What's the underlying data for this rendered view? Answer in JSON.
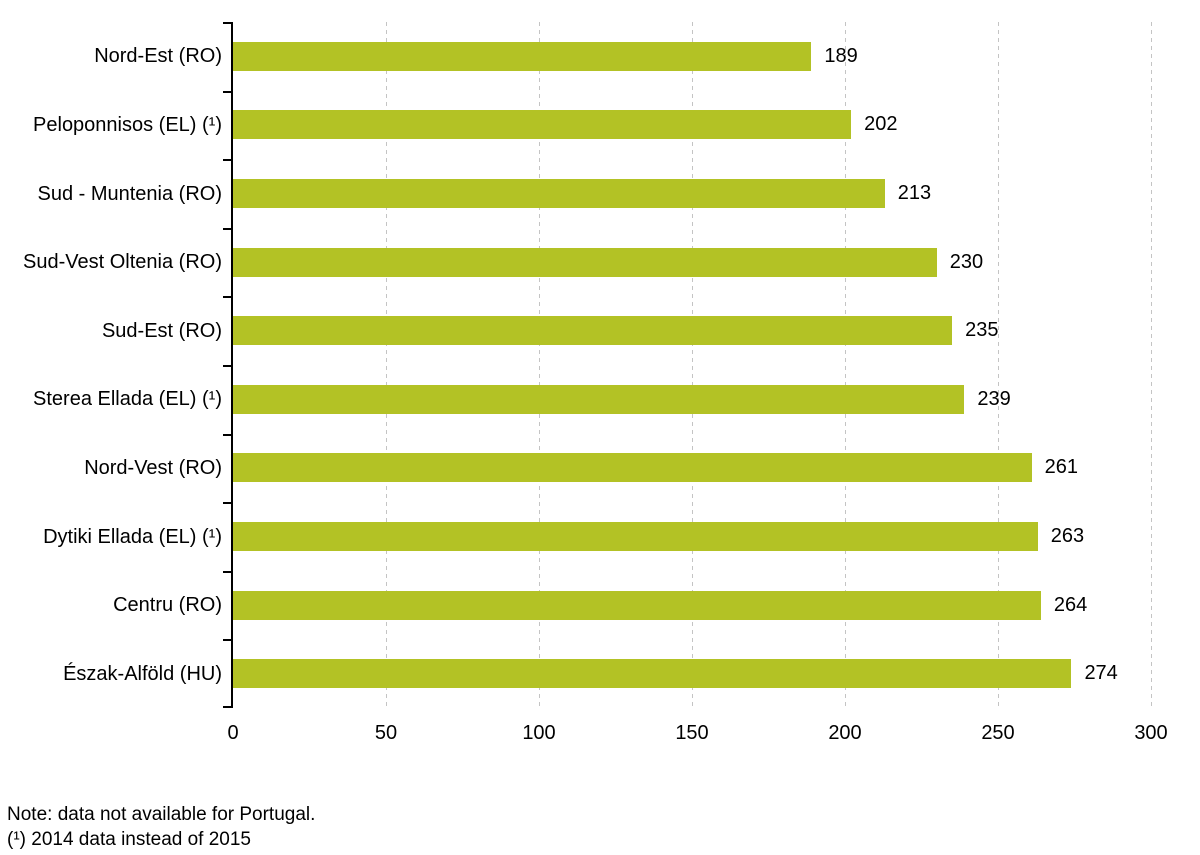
{
  "chart_data": {
    "type": "bar",
    "orientation": "horizontal",
    "title": "",
    "xlabel": "",
    "ylabel": "",
    "categories": [
      "Nord-Est (RO)",
      "Peloponnisos (EL) (¹)",
      "Sud - Muntenia (RO)",
      "Sud-Vest Oltenia (RO)",
      "Sud-Est (RO)",
      "Sterea Ellada (EL) (¹)",
      "Nord-Vest (RO)",
      "Dytiki Ellada (EL) (¹)",
      "Centru (RO)",
      "Észak-Alföld (HU)"
    ],
    "values": [
      189,
      202,
      213,
      230,
      235,
      239,
      261,
      263,
      264,
      274
    ],
    "value_labels_shown": true,
    "xlim": [
      0,
      300
    ],
    "xticks": [
      0,
      50,
      100,
      150,
      200,
      250,
      300
    ],
    "grid": "vertical-dashed-gridlines-at-ticks-except-zero",
    "legend": "none",
    "colors": {
      "bar": "#b3c225",
      "gridline": "#c4c4c4",
      "axis": "#000000",
      "text": "#000000",
      "background": "#ffffff"
    }
  },
  "notes": {
    "line1": "Note: data not available for Portugal.",
    "line2": "(¹) 2014 data instead of 2015"
  }
}
